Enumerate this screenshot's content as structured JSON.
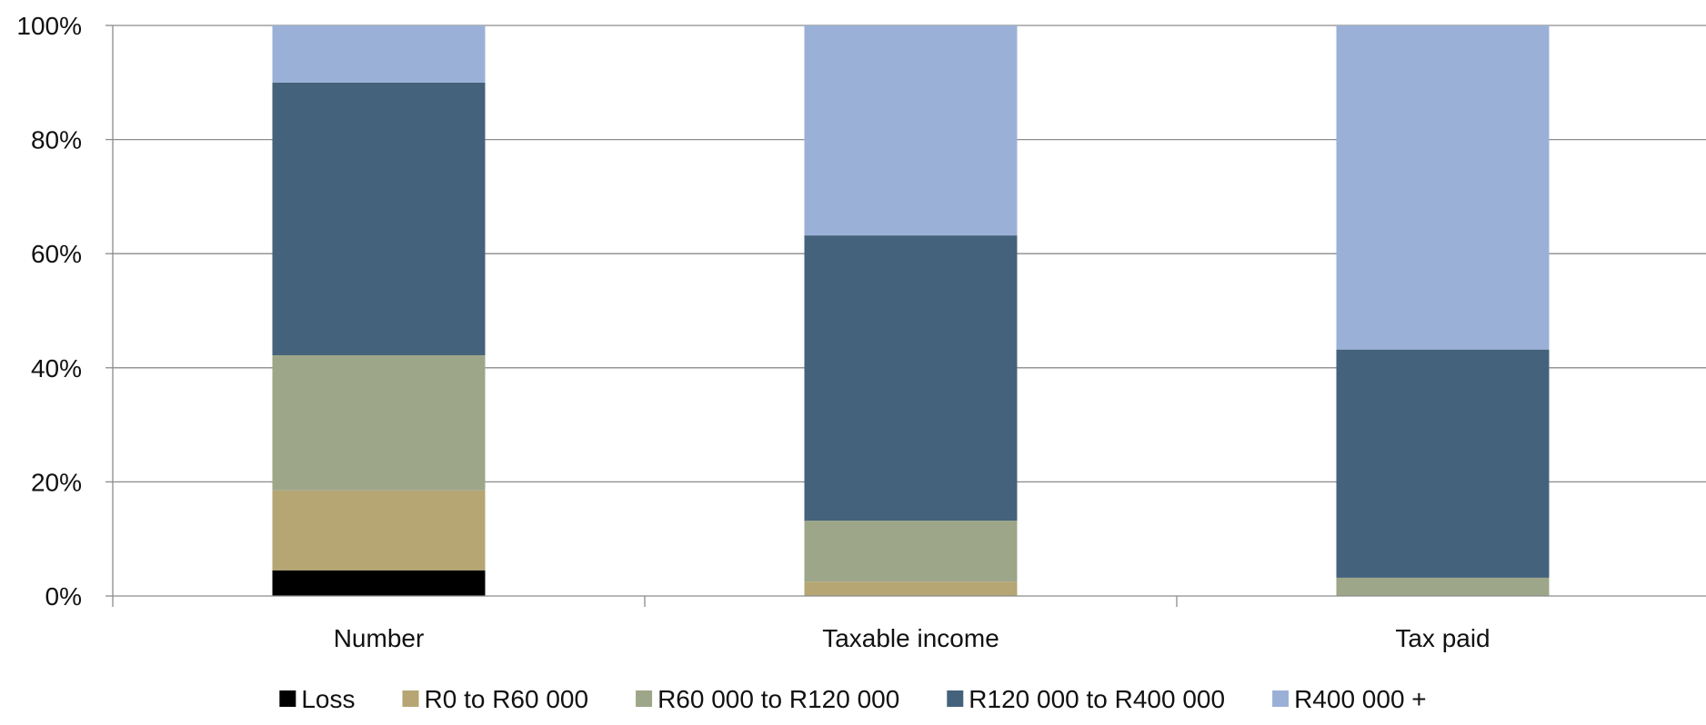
{
  "chart_data": {
    "type": "bar",
    "stacked": true,
    "normalized_percent": true,
    "categories": [
      "Number",
      "Taxable income",
      "Tax paid"
    ],
    "series": [
      {
        "name": "Loss",
        "color": "#000000",
        "values": [
          4.5,
          0.0,
          0.0
        ]
      },
      {
        "name": "R0 to R60 000",
        "color": "#B5A673",
        "values": [
          14.0,
          2.5,
          0.0
        ]
      },
      {
        "name": "R60 000 to R120 000",
        "color": "#9DA688",
        "values": [
          23.7,
          10.7,
          3.2
        ]
      },
      {
        "name": "R120 000 to R400 000",
        "color": "#44627B",
        "values": [
          47.8,
          50.0,
          40.0
        ]
      },
      {
        "name": "R400 000 +",
        "color": "#9BB0D7",
        "values": [
          10.0,
          36.8,
          56.8
        ]
      }
    ],
    "yticks": [
      "0%",
      "20%",
      "40%",
      "60%",
      "80%",
      "100%"
    ],
    "ylim": [
      0,
      100
    ],
    "grid": true,
    "legend_position": "bottom"
  }
}
